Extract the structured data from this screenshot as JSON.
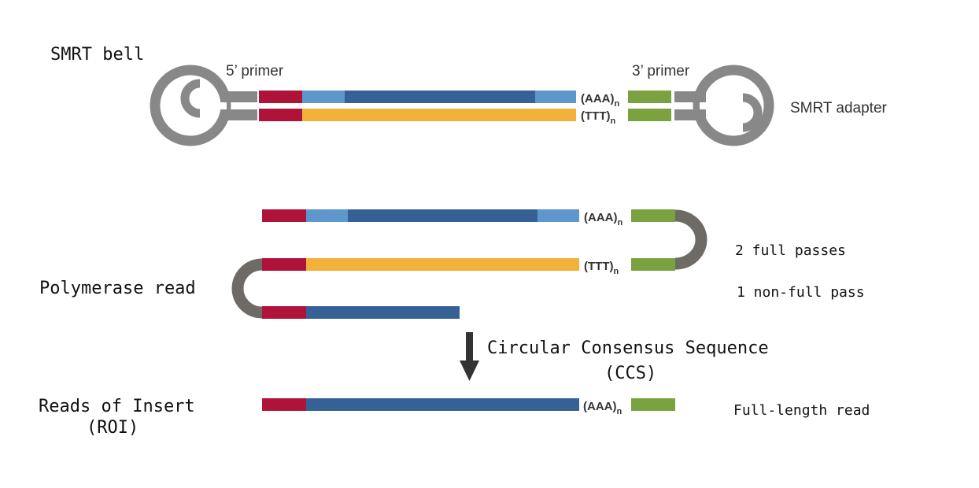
{
  "colors": {
    "red": "#b0133a",
    "light_blue": "#5e97cc",
    "dark_blue": "#366197",
    "orange": "#f2b13a",
    "green": "#7aa23e",
    "adapter_gray": "#888888",
    "loop_gray": "#6e6b66",
    "arrow": "#333333"
  },
  "smrt_bell": {
    "title": "SMRT bell",
    "primer5_label": "5’ primer",
    "primer3_label": "3’ primer",
    "adapter_label": "SMRT adapter",
    "polyA_label": "(AAA)",
    "polyT_label": "(TTT)",
    "subscript": "n"
  },
  "polymerase_read": {
    "label": "Polymerase read",
    "polyA_label": "(AAA)",
    "polyT_label": "(TTT)",
    "subscript": "n",
    "full_passes": "2 full passes",
    "non_full_pass": "1 non-full pass"
  },
  "ccs": {
    "line1": "Circular Consensus Sequence",
    "line2": "(CCS)"
  },
  "roi": {
    "label_line1": "Reads of Insert",
    "label_line2": "(ROI)",
    "polyA_label": "(AAA)",
    "subscript": "n",
    "full_length": "Full-length read"
  }
}
